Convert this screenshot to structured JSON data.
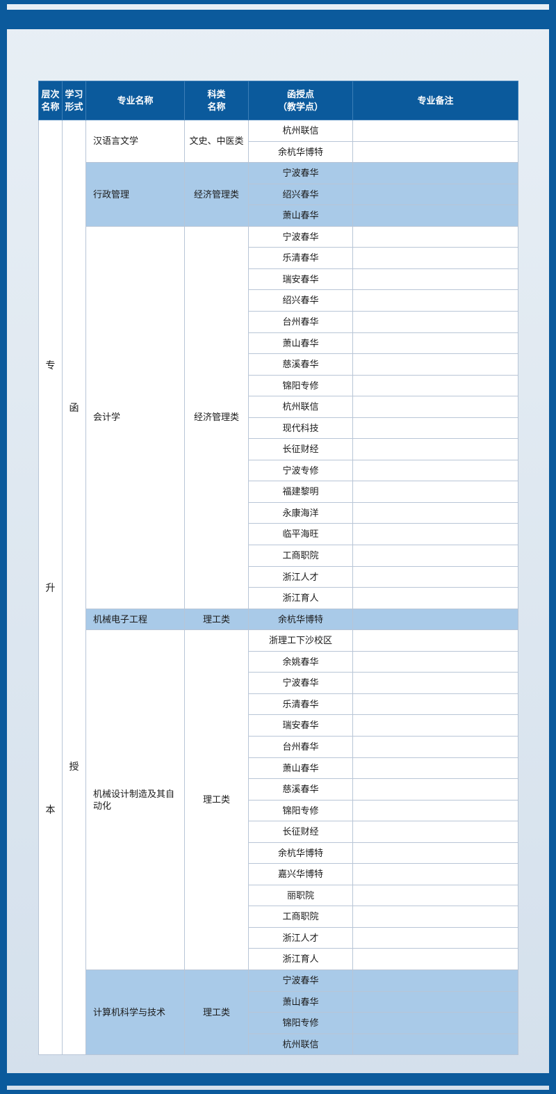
{
  "colors": {
    "frame": "#0b5a9c",
    "header_bg": "#0b5a9c",
    "header_fg": "#ffffff",
    "band_bg": "#a9cae8",
    "cell_border": "#b8c5d6",
    "page_bg_top": "#e8eff5",
    "page_bg_bottom": "#d4e0ec"
  },
  "header": {
    "level": "层次\n名称",
    "form": "学习\n形式",
    "major": "专业名称",
    "category": "科类\n名称",
    "point": "函授点\n（教学点）",
    "remark": "专业备注"
  },
  "level_name": "专升本",
  "level_chars": [
    "专",
    "升",
    "本"
  ],
  "form_name": "函授",
  "form_chars": [
    "函",
    "授"
  ],
  "majors": [
    {
      "name": "汉语言文学",
      "category": "文史、中医类",
      "band": false,
      "points": [
        "杭州联信",
        "余杭华博特"
      ]
    },
    {
      "name": "行政管理",
      "category": "经济管理类",
      "band": true,
      "points": [
        "宁波春华",
        "绍兴春华",
        "萧山春华"
      ]
    },
    {
      "name": "会计学",
      "category": "经济管理类",
      "band": false,
      "points": [
        "宁波春华",
        "乐清春华",
        "瑞安春华",
        "绍兴春华",
        "台州春华",
        "萧山春华",
        "慈溪春华",
        "锦阳专修",
        "杭州联信",
        "现代科技",
        "长征财经",
        "宁波专修",
        "福建黎明",
        "永康海洋",
        "临平海旺",
        "工商职院",
        "浙江人才",
        "浙江育人"
      ]
    },
    {
      "name": "机械电子工程",
      "category": "理工类",
      "band": true,
      "points": [
        "余杭华博特"
      ]
    },
    {
      "name": "机械设计制造及其自动化",
      "category": "理工类",
      "band": false,
      "points": [
        "浙理工下沙校区",
        "余姚春华",
        "宁波春华",
        "乐清春华",
        "瑞安春华",
        "台州春华",
        "萧山春华",
        "慈溪春华",
        "锦阳专修",
        "长征财经",
        "余杭华博特",
        "嘉兴华博特",
        "丽职院",
        "工商职院",
        "浙江人才",
        "浙江育人"
      ]
    },
    {
      "name": "计算机科学与技术",
      "category": "理工类",
      "band": true,
      "points": [
        "宁波春华",
        "萧山春华",
        "锦阳专修",
        "杭州联信"
      ]
    }
  ]
}
